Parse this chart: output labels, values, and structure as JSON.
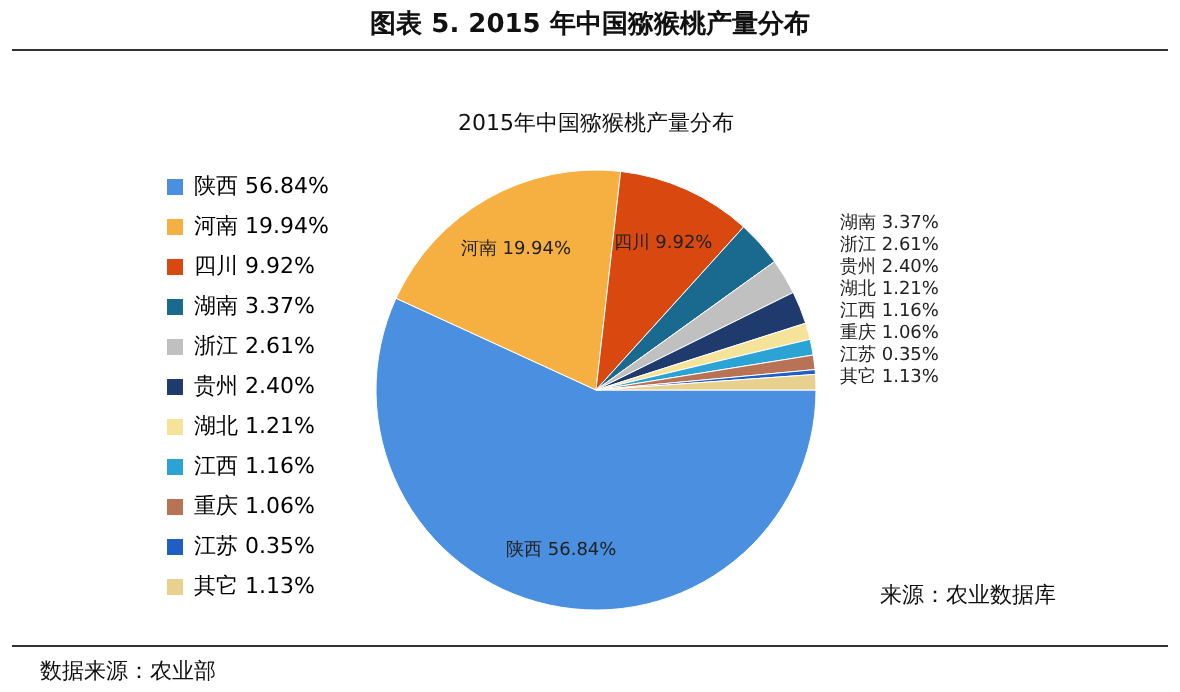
{
  "chart_data": {
    "type": "pie",
    "title": "图表 5. 2015 年中国猕猴桃产量分布",
    "subtitle": "2015年中国猕猴桃产量分布",
    "categories": [
      "陕西",
      "河南",
      "四川",
      "湖南",
      "浙江",
      "贵州",
      "湖北",
      "江西",
      "重庆",
      "江苏",
      "其它"
    ],
    "values": [
      56.84,
      19.94,
      9.92,
      3.37,
      2.61,
      2.4,
      1.21,
      1.16,
      1.06,
      0.35,
      1.13
    ],
    "value_labels": [
      "56.84%",
      "19.94%",
      "9.92%",
      "3.37%",
      "2.61%",
      "2.40%",
      "1.21%",
      "1.16%",
      "1.06%",
      "0.35%",
      "1.13%"
    ],
    "colors": [
      "#4a8fe0",
      "#f6b042",
      "#d9480f",
      "#1a6a8f",
      "#c0c0c0",
      "#1f3b6e",
      "#f5e39a",
      "#2ba3d4",
      "#b87356",
      "#1f5fc4",
      "#e8d08e"
    ],
    "legend": "left",
    "annotations": [
      "来源：农业数据库",
      "数据来源：农业部"
    ]
  }
}
